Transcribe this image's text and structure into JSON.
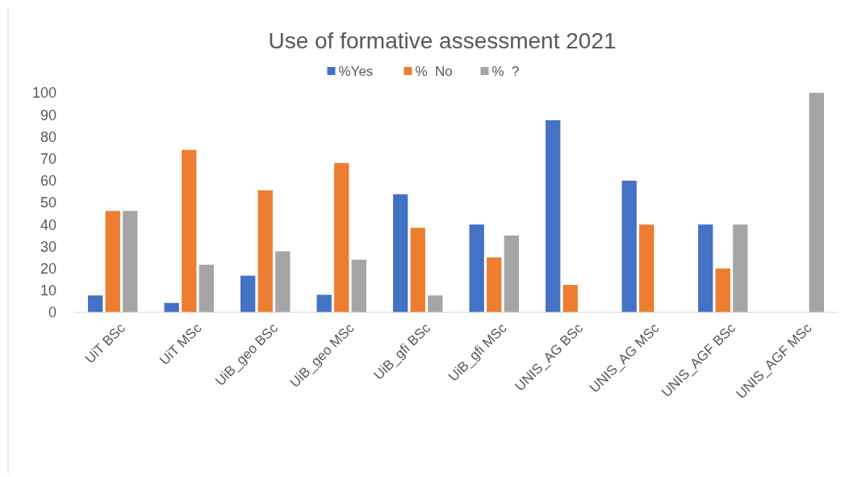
{
  "chart_data": {
    "type": "bar",
    "title": "Use of formative assessment 2021",
    "categories": [
      "UiT BSc",
      "UiT MSc",
      "UiB_geo BSc",
      "UiB_geo MSc",
      "UiB_gfi BSc",
      "UiB_gfi MSc",
      "UNIS_AG BSc",
      "UNIS_AG MSc",
      "UNIS_AGF BSc",
      "UNIS_AGF MSc"
    ],
    "series": [
      {
        "name": "%Yes",
        "color": "#4472c4",
        "values": [
          7.7,
          4.3,
          16.7,
          8,
          53.8,
          40,
          87.5,
          60,
          40,
          0
        ]
      },
      {
        "name": "%  No",
        "color": "#ed7d31",
        "values": [
          46.2,
          74,
          55.6,
          68,
          38.5,
          25,
          12.5,
          40,
          20,
          0
        ]
      },
      {
        "name": "%  ?",
        "color": "#a5a5a5",
        "values": [
          46.2,
          21.7,
          27.8,
          24,
          7.7,
          35,
          0,
          0,
          40,
          100
        ]
      }
    ],
    "ylim": [
      0,
      100
    ],
    "yticks": [
      0,
      10,
      20,
      30,
      40,
      50,
      60,
      70,
      80,
      90,
      100
    ],
    "grid": false,
    "legend": "top"
  }
}
